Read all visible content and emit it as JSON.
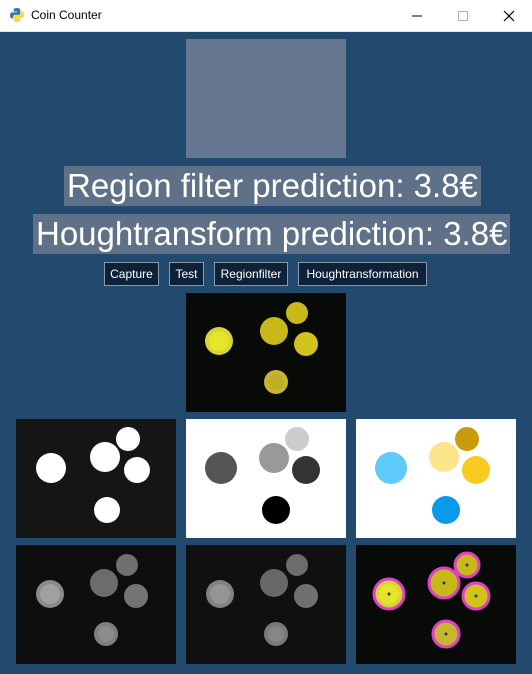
{
  "window": {
    "title": "Coin Counter"
  },
  "predictions": {
    "region": "Region filter prediction: 3.8€",
    "hough": "Houghtransform prediction: 3.8€"
  },
  "buttons": {
    "capture": "Capture",
    "test": "Test",
    "regionfilter": "Regionfilter",
    "houghtransformation": "Houghtransformation"
  },
  "colors": {
    "background": "#224a6e",
    "label_bg": "#5f7189",
    "button_bg": "#0d2238",
    "circle_outline": "#e040c8"
  }
}
